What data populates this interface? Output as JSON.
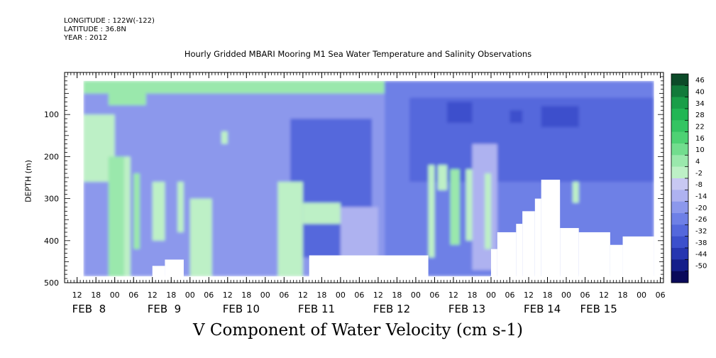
{
  "header": {
    "longitude": "LONGITUDE : 122W(-122)",
    "latitude": "LATITUDE : 36.8N",
    "year": "YEAR : 2012"
  },
  "chart_data": {
    "type": "heatmap",
    "title": "Hourly Gridded MBARI Mooring M1 Sea Water Temperature and Salinity Observations",
    "xlabel": "V Component of Water Velocity (cm s-1)",
    "ylabel": "DEPTH (m)",
    "x_range_hours": [
      8,
      199
    ],
    "x_ticks_hours": [
      12,
      18,
      24,
      30,
      36,
      42,
      48,
      54,
      60,
      66,
      72,
      78,
      84,
      90,
      96,
      102,
      108,
      114,
      120,
      126,
      132,
      138,
      144,
      150,
      156,
      162,
      168,
      174,
      180,
      186,
      192,
      198
    ],
    "x_tick_labels": [
      "12",
      "18",
      "00",
      "06",
      "12",
      "18",
      "00",
      "06",
      "12",
      "18",
      "00",
      "06",
      "12",
      "18",
      "00",
      "06",
      "12",
      "18",
      "00",
      "06",
      "12",
      "18",
      "00",
      "06",
      "12",
      "18",
      "00",
      "06",
      "12",
      "18",
      "00",
      "06"
    ],
    "date_labels": [
      {
        "label": "FEB  8",
        "hour": 12
      },
      {
        "label": "FEB  9",
        "hour": 36
      },
      {
        "label": "FEB 10",
        "hour": 60
      },
      {
        "label": "FEB 11",
        "hour": 84
      },
      {
        "label": "FEB 12",
        "hour": 108
      },
      {
        "label": "FEB 13",
        "hour": 132
      },
      {
        "label": "FEB 14",
        "hour": 156
      },
      {
        "label": "FEB 15",
        "hour": 174
      }
    ],
    "y_range": [
      500,
      0
    ],
    "y_ticks": [
      100,
      200,
      300,
      400,
      500
    ],
    "colorbar": {
      "labels": [
        "46",
        "40",
        "34",
        "28",
        "22",
        "16",
        "10",
        "4",
        "-2",
        "-8",
        "-14",
        "-20",
        "-26",
        "-32",
        "-38",
        "-44",
        "-50"
      ],
      "colors": [
        "#0c4a28",
        "#127a3a",
        "#1a9e48",
        "#22b654",
        "#34c462",
        "#4ed274",
        "#72dd8e",
        "#9ae8ac",
        "#bdf0c6",
        "#c8c8f2",
        "#aeb2f0",
        "#8c98ec",
        "#6e80e6",
        "#5468dc",
        "#3c50cc",
        "#2636b0",
        "#141e8a",
        "#0a0a5a"
      ]
    },
    "regions": [
      {
        "v": -14,
        "t0": 14,
        "t1": 110,
        "d0": 20,
        "d1": 485
      },
      {
        "v": -20,
        "t0": 110,
        "t1": 196,
        "d0": 20,
        "d1": 485
      },
      {
        "v": -26,
        "t0": 80,
        "t1": 106,
        "d0": 110,
        "d1": 440
      },
      {
        "v": -26,
        "t0": 118,
        "t1": 196,
        "d0": 60,
        "d1": 260
      },
      {
        "v": -32,
        "t0": 160,
        "t1": 172,
        "d0": 80,
        "d1": 130
      },
      {
        "v": -32,
        "t0": 130,
        "t1": 138,
        "d0": 70,
        "d1": 120
      },
      {
        "v": -32,
        "t0": 150,
        "t1": 154,
        "d0": 90,
        "d1": 120
      },
      {
        "v": -8,
        "t0": 96,
        "t1": 108,
        "d0": 320,
        "d1": 440
      },
      {
        "v": -8,
        "t0": 138,
        "t1": 146,
        "d0": 170,
        "d1": 470
      },
      {
        "v": 10,
        "t0": 14,
        "t1": 110,
        "d0": 20,
        "d1": 50
      },
      {
        "v": 10,
        "t0": 22,
        "t1": 34,
        "d0": 20,
        "d1": 78
      },
      {
        "v": 4,
        "t0": 14,
        "t1": 24,
        "d0": 100,
        "d1": 260
      },
      {
        "v": 10,
        "t0": 22,
        "t1": 27,
        "d0": 200,
        "d1": 485
      },
      {
        "v": 4,
        "t0": 27,
        "t1": 29,
        "d0": 200,
        "d1": 485
      },
      {
        "v": 10,
        "t0": 30,
        "t1": 32,
        "d0": 240,
        "d1": 420
      },
      {
        "v": 4,
        "t0": 36,
        "t1": 40,
        "d0": 260,
        "d1": 400
      },
      {
        "v": 4,
        "t0": 44,
        "t1": 46,
        "d0": 260,
        "d1": 380
      },
      {
        "v": 4,
        "t0": 48,
        "t1": 55,
        "d0": 300,
        "d1": 485
      },
      {
        "v": 4,
        "t0": 58,
        "t1": 60,
        "d0": 140,
        "d1": 170
      },
      {
        "v": 4,
        "t0": 76,
        "t1": 84,
        "d0": 260,
        "d1": 485
      },
      {
        "v": 4,
        "t0": 84,
        "t1": 96,
        "d0": 310,
        "d1": 360
      },
      {
        "v": 4,
        "t0": 124,
        "t1": 126,
        "d0": 220,
        "d1": 440
      },
      {
        "v": 4,
        "t0": 127,
        "t1": 130,
        "d0": 220,
        "d1": 280
      },
      {
        "v": 10,
        "t0": 131,
        "t1": 134,
        "d0": 230,
        "d1": 410
      },
      {
        "v": 4,
        "t0": 136,
        "t1": 138,
        "d0": 230,
        "d1": 400
      },
      {
        "v": 4,
        "t0": 142,
        "t1": 144,
        "d0": 240,
        "d1": 420
      },
      {
        "v": 4,
        "t0": 170,
        "t1": 172,
        "d0": 260,
        "d1": 310
      },
      {
        "v": 4,
        "t0": 178,
        "t1": 182,
        "d0": 478,
        "d1": 485
      }
    ],
    "missing": [
      {
        "t0": 36,
        "t1": 40,
        "d0": 460,
        "d1": 485
      },
      {
        "t0": 40,
        "t1": 46,
        "d0": 445,
        "d1": 485
      },
      {
        "t0": 86,
        "t1": 124,
        "d0": 435,
        "d1": 485
      },
      {
        "t0": 144,
        "t1": 146,
        "d0": 420,
        "d1": 485
      },
      {
        "t0": 146,
        "t1": 152,
        "d0": 380,
        "d1": 485
      },
      {
        "t0": 152,
        "t1": 154,
        "d0": 360,
        "d1": 485
      },
      {
        "t0": 154,
        "t1": 158,
        "d0": 330,
        "d1": 485
      },
      {
        "t0": 158,
        "t1": 160,
        "d0": 300,
        "d1": 485
      },
      {
        "t0": 160,
        "t1": 166,
        "d0": 255,
        "d1": 485
      },
      {
        "t0": 166,
        "t1": 172,
        "d0": 370,
        "d1": 485
      },
      {
        "t0": 172,
        "t1": 182,
        "d0": 380,
        "d1": 485
      },
      {
        "t0": 182,
        "t1": 186,
        "d0": 410,
        "d1": 485
      },
      {
        "t0": 186,
        "t1": 196,
        "d0": 390,
        "d1": 485
      }
    ]
  }
}
